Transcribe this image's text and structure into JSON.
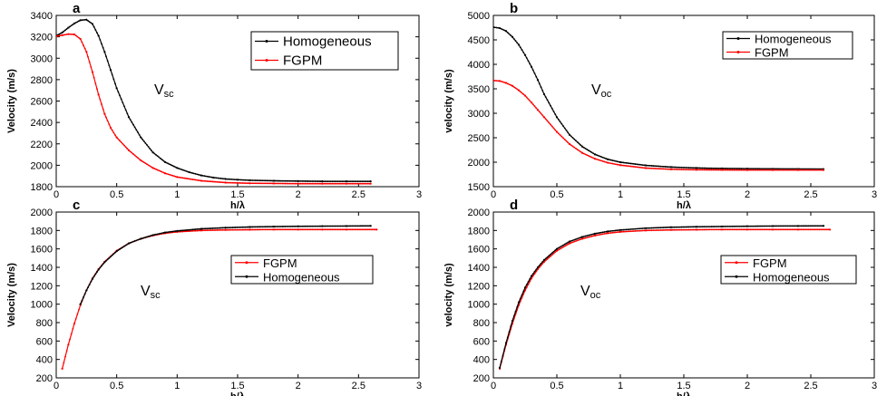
{
  "chart_data": [
    {
      "type": "line",
      "panel_letter": "a",
      "annotation": "V",
      "annotation_sub": "sc",
      "xlabel": "h/λ",
      "ylabel": "Velocity (m/s)",
      "xlim": [
        0,
        3
      ],
      "ylim": [
        1800,
        3400
      ],
      "xticks": [
        0,
        0.5,
        1,
        1.5,
        2,
        2.5,
        3
      ],
      "yticks": [
        1800,
        2000,
        2200,
        2400,
        2600,
        2800,
        3000,
        3200,
        3400
      ],
      "grid": false,
      "legend_position": "top-right",
      "series": [
        {
          "name": "Homogeneous",
          "color": "#000000",
          "x": [
            0,
            0.05,
            0.1,
            0.15,
            0.2,
            0.25,
            0.3,
            0.35,
            0.4,
            0.45,
            0.5,
            0.6,
            0.7,
            0.8,
            0.9,
            1.0,
            1.1,
            1.2,
            1.3,
            1.4,
            1.5,
            1.6,
            1.8,
            2.0,
            2.2,
            2.4,
            2.6
          ],
          "y": [
            3210,
            3240,
            3285,
            3325,
            3355,
            3360,
            3320,
            3210,
            3060,
            2890,
            2720,
            2450,
            2260,
            2120,
            2030,
            1975,
            1935,
            1905,
            1885,
            1872,
            1865,
            1860,
            1855,
            1852,
            1850,
            1850,
            1850
          ]
        },
        {
          "name": "FGPM",
          "color": "#ff0000",
          "x": [
            0,
            0.05,
            0.1,
            0.15,
            0.2,
            0.25,
            0.3,
            0.35,
            0.4,
            0.45,
            0.5,
            0.6,
            0.7,
            0.8,
            0.9,
            1.0,
            1.2,
            1.4,
            1.6,
            1.8,
            2.0,
            2.2,
            2.4,
            2.6
          ],
          "y": [
            3205,
            3215,
            3225,
            3222,
            3180,
            3060,
            2870,
            2660,
            2480,
            2350,
            2260,
            2140,
            2045,
            1975,
            1925,
            1890,
            1855,
            1838,
            1832,
            1830,
            1828,
            1828,
            1828,
            1828
          ]
        }
      ]
    },
    {
      "type": "line",
      "panel_letter": "b",
      "annotation": "V",
      "annotation_sub": "oc",
      "xlabel": "h/λ",
      "ylabel": "velocity (m/s)",
      "xlim": [
        0,
        3
      ],
      "ylim": [
        1500,
        5000
      ],
      "xticks": [
        0,
        0.5,
        1,
        1.5,
        2,
        2.5,
        3
      ],
      "yticks": [
        1500,
        2000,
        2500,
        3000,
        3500,
        4000,
        4500,
        5000
      ],
      "grid": false,
      "legend_position": "top-right",
      "series": [
        {
          "name": "Homogeneous",
          "color": "#000000",
          "x": [
            0,
            0.05,
            0.1,
            0.15,
            0.2,
            0.25,
            0.3,
            0.35,
            0.4,
            0.5,
            0.6,
            0.7,
            0.8,
            0.9,
            1.0,
            1.2,
            1.4,
            1.6,
            1.8,
            2.0,
            2.2,
            2.4,
            2.6
          ],
          "y": [
            4760,
            4740,
            4680,
            4560,
            4400,
            4190,
            3950,
            3680,
            3390,
            2920,
            2560,
            2320,
            2160,
            2060,
            2000,
            1935,
            1900,
            1882,
            1872,
            1868,
            1865,
            1862,
            1860
          ]
        },
        {
          "name": "FGPM",
          "color": "#ff0000",
          "x": [
            0,
            0.05,
            0.1,
            0.15,
            0.2,
            0.25,
            0.3,
            0.35,
            0.4,
            0.5,
            0.6,
            0.7,
            0.8,
            0.9,
            1.0,
            1.2,
            1.4,
            1.6,
            1.8,
            2.0,
            2.2,
            2.4,
            2.6
          ],
          "y": [
            3670,
            3660,
            3620,
            3560,
            3470,
            3360,
            3220,
            3070,
            2920,
            2620,
            2370,
            2190,
            2070,
            1990,
            1940,
            1880,
            1855,
            1845,
            1842,
            1840,
            1840,
            1840,
            1840
          ]
        }
      ]
    },
    {
      "type": "line",
      "panel_letter": "c",
      "annotation": "V",
      "annotation_sub": "sc",
      "xlabel": "h/λ",
      "ylabel": "Velocity (m/s)",
      "xlim": [
        0,
        3
      ],
      "ylim": [
        200,
        2000
      ],
      "xticks": [
        0,
        0.5,
        1,
        1.5,
        2,
        2.5,
        3
      ],
      "yticks": [
        200,
        400,
        600,
        800,
        1000,
        1200,
        1400,
        1600,
        1800,
        2000
      ],
      "grid": false,
      "legend_position": "middle-right",
      "series": [
        {
          "name": "FGPM",
          "color": "#ff0000",
          "x": [
            0.05,
            0.1,
            0.15,
            0.2,
            0.25,
            0.3,
            0.35,
            0.4,
            0.5,
            0.6,
            0.7,
            0.8,
            0.9,
            1.0,
            1.2,
            1.4,
            1.6,
            1.8,
            2.0,
            2.2,
            2.4,
            2.65
          ],
          "y": [
            300,
            560,
            790,
            990,
            1150,
            1280,
            1380,
            1460,
            1580,
            1660,
            1710,
            1745,
            1770,
            1785,
            1800,
            1806,
            1808,
            1810,
            1810,
            1810,
            1810,
            1810
          ]
        },
        {
          "name": "Homogeneous",
          "color": "#000000",
          "x": [
            0.2,
            0.25,
            0.3,
            0.35,
            0.4,
            0.5,
            0.6,
            0.7,
            0.8,
            0.9,
            1.0,
            1.2,
            1.4,
            1.6,
            1.8,
            2.0,
            2.2,
            2.4,
            2.6
          ],
          "y": [
            1000,
            1150,
            1275,
            1375,
            1455,
            1575,
            1660,
            1710,
            1750,
            1778,
            1795,
            1818,
            1830,
            1838,
            1842,
            1845,
            1847,
            1848,
            1850
          ]
        }
      ]
    },
    {
      "type": "line",
      "panel_letter": "d",
      "annotation": "V",
      "annotation_sub": "oc",
      "xlabel": "h/λ",
      "ylabel": "velocity (m/s)",
      "xlim": [
        0,
        3
      ],
      "ylim": [
        200,
        2000
      ],
      "xticks": [
        0,
        0.5,
        1,
        1.5,
        2,
        2.5,
        3
      ],
      "yticks": [
        200,
        400,
        600,
        800,
        1000,
        1200,
        1400,
        1600,
        1800,
        2000
      ],
      "grid": false,
      "legend_position": "middle-right",
      "series": [
        {
          "name": "FGPM",
          "color": "#ff0000",
          "x": [
            0.05,
            0.1,
            0.15,
            0.2,
            0.25,
            0.3,
            0.35,
            0.4,
            0.5,
            0.6,
            0.7,
            0.8,
            0.9,
            1.0,
            1.2,
            1.4,
            1.6,
            1.8,
            2.0,
            2.2,
            2.4,
            2.65
          ],
          "y": [
            300,
            560,
            790,
            990,
            1150,
            1280,
            1380,
            1460,
            1580,
            1660,
            1710,
            1745,
            1770,
            1785,
            1800,
            1806,
            1808,
            1810,
            1810,
            1810,
            1810,
            1810
          ]
        },
        {
          "name": "Homogeneous",
          "color": "#000000",
          "x": [
            0.05,
            0.1,
            0.15,
            0.2,
            0.25,
            0.3,
            0.35,
            0.4,
            0.5,
            0.6,
            0.7,
            0.8,
            0.9,
            1.0,
            1.2,
            1.4,
            1.6,
            1.8,
            2.0,
            2.2,
            2.4,
            2.6
          ],
          "y": [
            310,
            580,
            820,
            1020,
            1180,
            1305,
            1400,
            1480,
            1600,
            1680,
            1730,
            1765,
            1790,
            1805,
            1825,
            1835,
            1840,
            1843,
            1846,
            1848,
            1849,
            1850
          ]
        }
      ]
    }
  ]
}
